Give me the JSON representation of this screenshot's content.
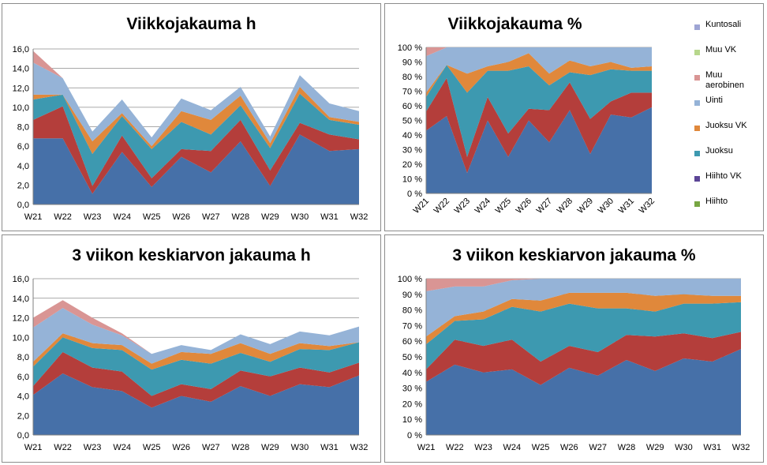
{
  "legend": {
    "items": [
      {
        "label": "Kuntosali",
        "color": "#9ea5d4"
      },
      {
        "label": "Muu VK",
        "color": "#b7d78c"
      },
      {
        "label": "Muu aerobinen",
        "color": "#d99594"
      },
      {
        "label": "Uinti",
        "color": "#95b3d7"
      },
      {
        "label": "Juoksu VK",
        "color": "#e0883b"
      },
      {
        "label": "Juoksu",
        "color": "#3d99b0"
      },
      {
        "label": "Hiihto VK",
        "color": "#5c4596"
      },
      {
        "label": "Hiihto",
        "color": "#77a642"
      }
    ]
  },
  "chart_data": [
    {
      "type": "area",
      "stacked": true,
      "title": "Viikkojakauma h",
      "categories": [
        "W21",
        "W22",
        "W23",
        "W24",
        "W25",
        "W26",
        "W27",
        "W28",
        "W29",
        "W30",
        "W31",
        "W32"
      ],
      "ylim": [
        0,
        16
      ],
      "yticks": [
        "0,0",
        "2,0",
        "4,0",
        "6,0",
        "8,0",
        "10,0",
        "12,0",
        "14,0",
        "16,0"
      ],
      "grid": true,
      "series": [
        {
          "name": "Hiihto VK",
          "values": [
            6.8,
            6.8,
            1.1,
            5.4,
            1.8,
            4.9,
            3.3,
            6.5,
            1.9,
            7.2,
            5.5,
            5.7
          ],
          "color": "#4670a8"
        },
        {
          "name": "Hiihto",
          "values": [
            1.9,
            3.3,
            0.8,
            1.7,
            0.9,
            0.8,
            2.2,
            2.2,
            1.6,
            1.2,
            1.7,
            1.0
          ],
          "color": "#b43e3b"
        },
        {
          "name": "Juoksu",
          "values": [
            2.1,
            1.2,
            3.3,
            2.0,
            3.0,
            2.8,
            1.7,
            1.5,
            2.3,
            3.0,
            1.5,
            1.5
          ],
          "color": "#3d99b0"
        },
        {
          "name": "Juoksu VK",
          "values": [
            0.5,
            0,
            1.3,
            0.3,
            0.3,
            1.1,
            1.5,
            1.0,
            0.5,
            0.7,
            0.3,
            0.3
          ],
          "color": "#e0883b"
        },
        {
          "name": "Uinti",
          "values": [
            3.3,
            1.7,
            1.0,
            1.4,
            0.9,
            1.3,
            1.0,
            0.9,
            0.7,
            1.2,
            1.4,
            1.1
          ],
          "color": "#95b3d7"
        },
        {
          "name": "Muu aerobinen",
          "values": [
            1.2,
            0,
            0,
            0,
            0,
            0,
            0,
            0,
            0,
            0,
            0,
            0
          ],
          "color": "#d99594"
        }
      ]
    },
    {
      "type": "area",
      "stacked": true,
      "title": "Viikkojakauma %",
      "categories": [
        "W21",
        "W22",
        "W23",
        "W24",
        "W25",
        "W26",
        "W27",
        "W28",
        "W29",
        "W30",
        "W31",
        "W32"
      ],
      "ylim": [
        0,
        100
      ],
      "yticks": [
        "0 %",
        "10 %",
        "20 %",
        "30 %",
        "40 %",
        "50 %",
        "60 %",
        "70 %",
        "80 %",
        "90 %",
        "100 %"
      ],
      "grid": true,
      "series": [
        {
          "name": "Hiihto VK",
          "values": [
            43,
            53,
            14,
            50,
            25,
            50,
            35,
            57,
            27,
            54,
            52,
            59
          ],
          "color": "#4670a8"
        },
        {
          "name": "Hiihto",
          "values": [
            13,
            26,
            11,
            16,
            16,
            8,
            22,
            19,
            24,
            9,
            17,
            10
          ],
          "color": "#b43e3b"
        },
        {
          "name": "Juoksu",
          "values": [
            10,
            9,
            44,
            18,
            43,
            29,
            17,
            7,
            30,
            22,
            15,
            15
          ],
          "color": "#3d99b0"
        },
        {
          "name": "Juoksu VK",
          "values": [
            3,
            0,
            13,
            3,
            6,
            9,
            8,
            8,
            6,
            5,
            2,
            3
          ],
          "color": "#e0883b"
        },
        {
          "name": "Uinti",
          "values": [
            25,
            12,
            18,
            13,
            10,
            4,
            18,
            9,
            13,
            10,
            14,
            13
          ],
          "color": "#95b3d7"
        },
        {
          "name": "Muu aerobinen",
          "values": [
            6,
            0,
            0,
            0,
            0,
            0,
            0,
            0,
            0,
            0,
            0,
            0
          ],
          "color": "#d99594"
        }
      ]
    },
    {
      "type": "area",
      "stacked": true,
      "title": "3 viikon keskiarvon jakauma h",
      "categories": [
        "W21",
        "W22",
        "W23",
        "W24",
        "W25",
        "W26",
        "W27",
        "W28",
        "W29",
        "W30",
        "W31",
        "W32"
      ],
      "ylim": [
        0,
        16
      ],
      "yticks": [
        "0,0",
        "2,0",
        "4,0",
        "6,0",
        "8,0",
        "10,0",
        "12,0",
        "14,0",
        "16,0"
      ],
      "grid": true,
      "series": [
        {
          "name": "Hiihto VK",
          "values": [
            4.1,
            6.3,
            4.9,
            4.5,
            2.8,
            4.0,
            3.4,
            5.0,
            4.0,
            5.2,
            4.9,
            6.1
          ],
          "color": "#4670a8"
        },
        {
          "name": "Hiihto",
          "values": [
            0.9,
            2.2,
            2.0,
            2.0,
            1.2,
            1.2,
            1.3,
            1.6,
            2.0,
            1.7,
            1.5,
            1.3
          ],
          "color": "#b43e3b"
        },
        {
          "name": "Juoksu",
          "values": [
            2.0,
            1.5,
            2.0,
            2.2,
            2.7,
            2.5,
            2.6,
            1.8,
            1.5,
            1.9,
            2.3,
            2.1
          ],
          "color": "#3d99b0"
        },
        {
          "name": "Juoksu VK",
          "values": [
            0.5,
            0.4,
            0.5,
            0.5,
            0.6,
            0.8,
            1.0,
            1.0,
            0.8,
            0.6,
            0.4,
            0.0
          ],
          "color": "#e0883b"
        },
        {
          "name": "Uinti",
          "values": [
            3.5,
            2.6,
            1.9,
            1.0,
            1.0,
            0.7,
            0.4,
            0.9,
            1.0,
            1.2,
            1.1,
            1.6
          ],
          "color": "#95b3d7"
        },
        {
          "name": "Muu aerobinen",
          "values": [
            1.0,
            0.8,
            0.7,
            0.2,
            0,
            0,
            0,
            0,
            0,
            0,
            0,
            0
          ],
          "color": "#d99594"
        }
      ]
    },
    {
      "type": "area",
      "stacked": true,
      "title": "3 viikon keskiarvon jakauma %",
      "categories": [
        "W21",
        "W22",
        "W23",
        "W24",
        "W25",
        "W26",
        "W27",
        "W28",
        "W29",
        "W30",
        "W31",
        "W32"
      ],
      "ylim": [
        0,
        100
      ],
      "yticks": [
        "0 %",
        "10 %",
        "20 %",
        "30 %",
        "40 %",
        "50 %",
        "60 %",
        "70 %",
        "80 %",
        "90 %",
        "100 %"
      ],
      "grid": true,
      "series": [
        {
          "name": "Hiihto VK",
          "values": [
            34,
            45,
            40,
            42,
            32,
            43,
            38,
            48,
            41,
            49,
            47,
            55
          ],
          "color": "#4670a8"
        },
        {
          "name": "Hiihto",
          "values": [
            8,
            16,
            17,
            19,
            15,
            14,
            15,
            16,
            22,
            16,
            15,
            11
          ],
          "color": "#b43e3b"
        },
        {
          "name": "Juoksu",
          "values": [
            16,
            12,
            17,
            21,
            32,
            27,
            28,
            17,
            16,
            19,
            22,
            19
          ],
          "color": "#3d99b0"
        },
        {
          "name": "Juoksu VK",
          "values": [
            5,
            3,
            5,
            5,
            7,
            7,
            10,
            10,
            10,
            6,
            5,
            4
          ],
          "color": "#e0883b"
        },
        {
          "name": "Uinti",
          "values": [
            29,
            19,
            16,
            12,
            14,
            9,
            9,
            9,
            11,
            10,
            11,
            11
          ],
          "color": "#95b3d7"
        },
        {
          "name": "Muu aerobinen",
          "values": [
            8,
            5,
            5,
            1,
            0,
            0,
            0,
            0,
            0,
            0,
            0,
            0
          ],
          "color": "#d99594"
        }
      ]
    }
  ]
}
